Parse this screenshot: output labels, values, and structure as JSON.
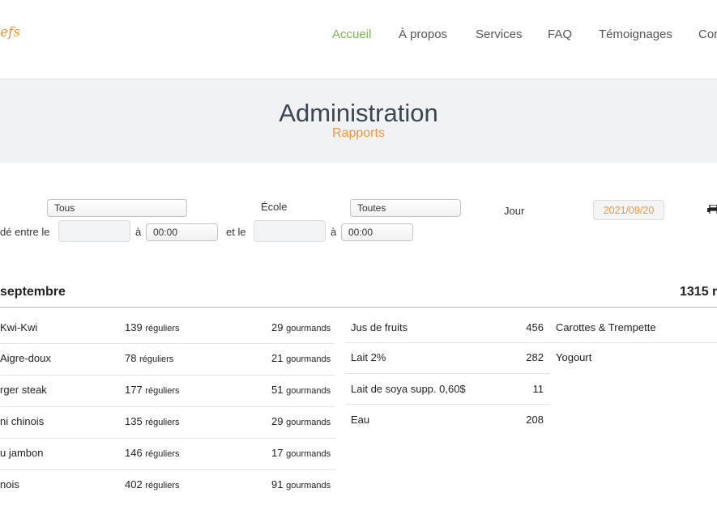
{
  "brand": {
    "logo_text": "efs"
  },
  "nav": [
    {
      "label": "Accueil",
      "active": true
    },
    {
      "label": "À propos"
    },
    {
      "label": "Services"
    },
    {
      "label": "FAQ"
    },
    {
      "label": "Témoignages"
    },
    {
      "label": "Cor"
    }
  ],
  "banner": {
    "title": "Administration",
    "subtitle": "Rapports"
  },
  "filters": {
    "first_select": "Tous",
    "school_label": "École",
    "school_select": "Toutes",
    "day_label": "Jour",
    "day_value": "2021/09/20",
    "ordered_between_label": "dé entre le",
    "date_from": "",
    "at_label_1": "à",
    "time_from": "00:00",
    "and_label": "et le",
    "date_to": "",
    "at_label_2": "à",
    "time_to": "00:00"
  },
  "report": {
    "day_heading": "septembre",
    "total": "1315 r",
    "meals": [
      {
        "name": "Kwi-Kwi",
        "regular": "139",
        "gourmand": "29"
      },
      {
        "name": "Aigre-doux",
        "regular": "78",
        "gourmand": "21"
      },
      {
        "name": "rger steak",
        "regular": "177",
        "gourmand": "51"
      },
      {
        "name": "ni chinois",
        "regular": "135",
        "gourmand": "29"
      },
      {
        "name": "u jambon",
        "regular": "146",
        "gourmand": "17"
      },
      {
        "name": "nois",
        "regular": "402",
        "gourmand": "91"
      }
    ],
    "regular_suffix": "réguliers",
    "gourmand_suffix": "gourmands",
    "drinks": [
      {
        "name": "Jus de fruits",
        "count": "456"
      },
      {
        "name": "Lait 2%",
        "count": "282"
      },
      {
        "name": "Lait de soya supp. 0,60$",
        "count": "11"
      },
      {
        "name": "Eau",
        "count": "208"
      }
    ],
    "sides": [
      {
        "name": "Carottes & Trempette"
      },
      {
        "name": "Yogourt"
      }
    ]
  }
}
